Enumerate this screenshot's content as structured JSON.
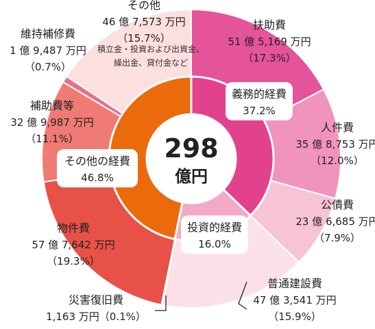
{
  "chart_data": {
    "type": "pie",
    "total": {
      "value": "298",
      "unit": "億円"
    },
    "inner_ring": [
      {
        "name": "義務的経費",
        "pct": 37.2,
        "pct_label": "37.2%",
        "color": "#e2418d",
        "text_color": "#222222"
      },
      {
        "name": "投資的経費",
        "pct": 16.0,
        "pct_label": "16.0%",
        "color": "#f2a9c7",
        "text_color": "#222222"
      },
      {
        "name": "その他の経費",
        "pct": 46.8,
        "pct_label": "46.8%",
        "color": "#ea6a0c",
        "text_color": "#222222"
      }
    ],
    "outer_ring": [
      {
        "name": "扶助費",
        "amount": "51 億 5,169 万円",
        "pct": 17.3,
        "pct_label": "（17.3%）",
        "color": "#e5539a",
        "group": "義務的経費"
      },
      {
        "name": "人件費",
        "amount": "35 億 8,753 万円",
        "pct": 12.0,
        "pct_label": "（12.0%）",
        "color": "#f094bd",
        "group": "義務的経費"
      },
      {
        "name": "公債費",
        "amount": "23 億 6,685 万円",
        "pct": 7.9,
        "pct_label": "（7.9%）",
        "color": "#f7c3d7",
        "group": "義務的経費"
      },
      {
        "name": "普通建設費",
        "amount": "47 億 3,541 万円",
        "pct": 15.9,
        "pct_label": "（15.9%）",
        "color": "#fbe1e7",
        "group": "投資的経費"
      },
      {
        "name": "災害復旧費",
        "amount": "1,163 万円",
        "pct": 0.1,
        "pct_label": "（0.1%）",
        "color": "#f3b3ca",
        "group": "投資的経費"
      },
      {
        "name": "物件費",
        "amount": "57 億 7,642 万円",
        "pct": 19.3,
        "pct_label": "（19.3%）",
        "color": "#e75148",
        "group": "その他の経費"
      },
      {
        "name": "補助費等",
        "amount": "32 億 9,987 万円",
        "pct": 11.1,
        "pct_label": "（11.1%）",
        "color": "#ef7b74",
        "group": "その他の経費"
      },
      {
        "name": "維持補修費",
        "amount": "1 億 9,487 万円",
        "pct": 0.7,
        "pct_label": "（0.7%）",
        "color": "#ea6f86",
        "group": "その他の経費"
      },
      {
        "name": "その他",
        "amount": "46 億 7,573 万円",
        "pct": 15.7,
        "pct_label": "（15.7%）",
        "color": "#fbe0df",
        "group": "その他の経費",
        "note_lines": [
          "積立金・投資および出資金、",
          "繰出金、貸付金など"
        ]
      }
    ],
    "start": "12 o'clock",
    "direction": "clockwise",
    "legend": "none"
  }
}
